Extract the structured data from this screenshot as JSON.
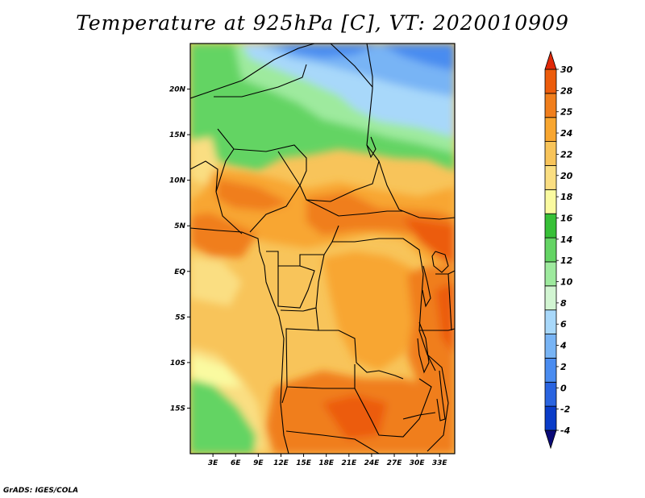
{
  "title": "Temperature at 925hPa [C], VT: 2020010909",
  "credit": "GrADS: IGES/COLA",
  "map": {
    "variable": "Temperature",
    "level": "925hPa",
    "units": "C",
    "valid_time": "2020010909",
    "lon_range": [
      0,
      35
    ],
    "lat_range": [
      -20,
      25
    ],
    "lat_labels": [
      {
        "lat": 20,
        "text": "20N"
      },
      {
        "lat": 15,
        "text": "15N"
      },
      {
        "lat": 10,
        "text": "10N"
      },
      {
        "lat": 5,
        "text": "5N"
      },
      {
        "lat": 0,
        "text": "EQ"
      },
      {
        "lat": -5,
        "text": "5S"
      },
      {
        "lat": -10,
        "text": "10S"
      },
      {
        "lat": -15,
        "text": "15S"
      }
    ],
    "lon_labels": [
      {
        "lon": 3,
        "text": "3E"
      },
      {
        "lon": 6,
        "text": "6E"
      },
      {
        "lon": 9,
        "text": "9E"
      },
      {
        "lon": 12,
        "text": "12E"
      },
      {
        "lon": 15,
        "text": "15E"
      },
      {
        "lon": 18,
        "text": "18E"
      },
      {
        "lon": 21,
        "text": "21E"
      },
      {
        "lon": 24,
        "text": "24E"
      },
      {
        "lon": 27,
        "text": "27E"
      },
      {
        "lon": 30,
        "text": "30E"
      },
      {
        "lon": 33,
        "text": "33E"
      }
    ]
  },
  "colorbar": {
    "colors": [
      "#0a0a78",
      "#0a3cc8",
      "#2a64e0",
      "#4a8cf0",
      "#78b4f5",
      "#a8d8fa",
      "#d2f5d2",
      "#9eea9e",
      "#64d464",
      "#37c037",
      "#fafaa0",
      "#fade82",
      "#f8c45a",
      "#f8a630",
      "#f07e1c",
      "#ec5c0c",
      "#e02808"
    ],
    "labels": [
      "-4",
      "-2",
      "0",
      "2",
      "4",
      "6",
      "8",
      "10",
      "12",
      "14",
      "16",
      "18",
      "20",
      "22",
      "24",
      "25",
      "28",
      "30"
    ]
  }
}
